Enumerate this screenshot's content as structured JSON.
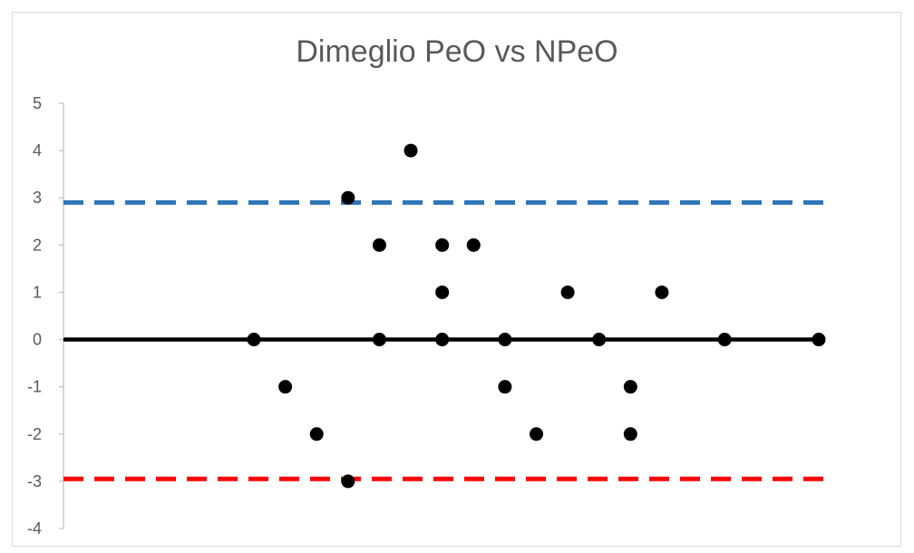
{
  "chart_data": {
    "type": "scatter",
    "title": "Dimeglio PeO vs NPeO",
    "xlabel": "",
    "ylabel": "",
    "ylim": [
      -4,
      5
    ],
    "xlim": [
      0,
      24
    ],
    "yticks": [
      5,
      4,
      3,
      2,
      1,
      0,
      -1,
      -2,
      -3,
      -4
    ],
    "grid": false,
    "legend": "none",
    "x": [
      6,
      7,
      8,
      9,
      9,
      10,
      10,
      11,
      12,
      12,
      12,
      13,
      14,
      14,
      15,
      16,
      17,
      18,
      18,
      19,
      21,
      24
    ],
    "y": [
      0,
      -1,
      -2,
      3,
      -3,
      2,
      0,
      4,
      2,
      0,
      1,
      2,
      0,
      -1,
      -2,
      1,
      0,
      -2,
      -1,
      1,
      0,
      0
    ],
    "reference_lines": [
      {
        "value": 0,
        "style": "solid",
        "color": "#000000"
      },
      {
        "value": 2.9,
        "style": "dashed",
        "color": "#2e75b6"
      },
      {
        "value": -2.95,
        "style": "dashed",
        "color": "#ff0000"
      }
    ],
    "marker_color": "#000000"
  }
}
